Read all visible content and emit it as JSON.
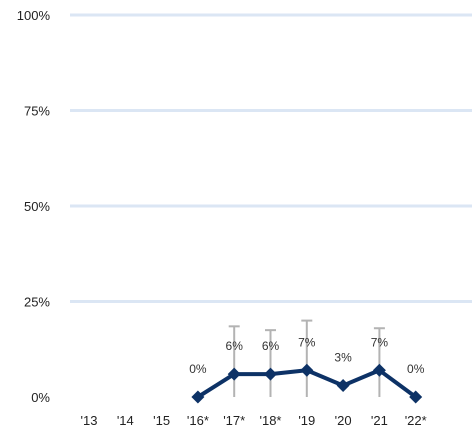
{
  "chart_data": {
    "type": "line",
    "title": "",
    "xlabel": "",
    "ylabel": "",
    "ylim": [
      0,
      100
    ],
    "y_ticks": [
      "0%",
      "25%",
      "50%",
      "75%",
      "100%"
    ],
    "categories": [
      "'13",
      "'14",
      "'15",
      "'16*",
      "'17*",
      "'18*",
      "'19",
      "'20",
      "'21",
      "'22*"
    ],
    "series": [
      {
        "values": [
          null,
          null,
          null,
          0,
          6,
          6,
          7,
          3,
          7,
          0
        ],
        "labels": [
          "",
          "",
          "",
          "0%",
          "6%",
          "6%",
          "7%",
          "3%",
          "7%",
          "0%"
        ],
        "error_low": [
          null,
          null,
          null,
          null,
          0,
          0,
          0,
          null,
          0,
          null
        ],
        "error_high": [
          null,
          null,
          null,
          null,
          18.5,
          17.5,
          20,
          null,
          18,
          null
        ]
      }
    ],
    "grid": true,
    "legend": "none",
    "colors": {
      "line": "#0d3266",
      "grid": "#dbe6f4",
      "error_bar": "#b3b3b3"
    }
  }
}
